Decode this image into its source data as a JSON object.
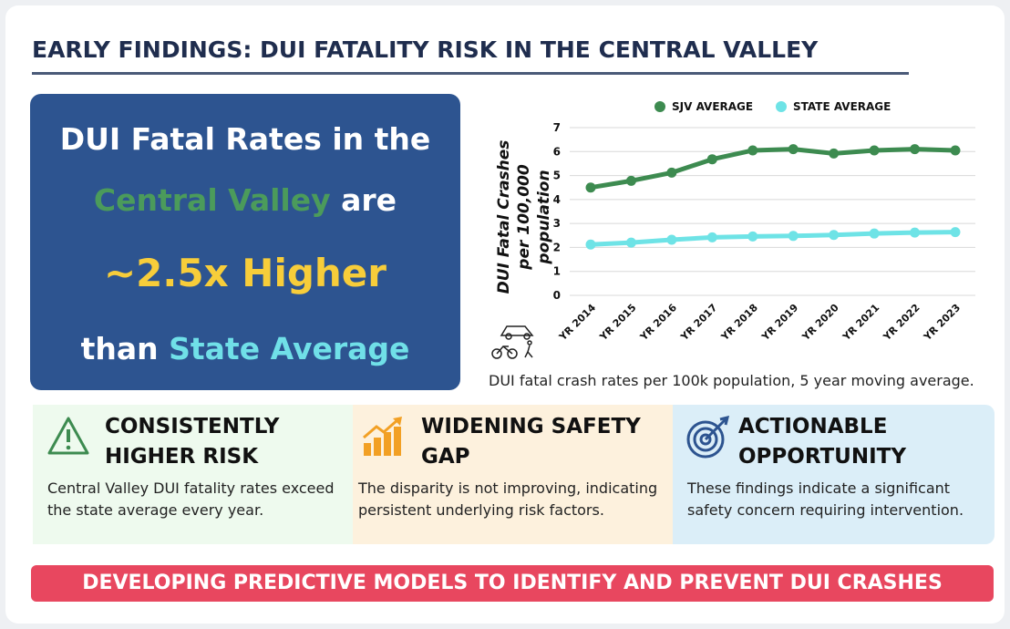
{
  "header": {
    "title": "EARLY FINDINGS: DUI FATALITY RISK IN THE CENTRAL VALLEY"
  },
  "hero": {
    "line1": "DUI Fatal Rates in the",
    "highlight1": "Central Valley",
    "word1": "are",
    "big": "~2.5x Higher",
    "word2": "than",
    "highlight2": "State Average"
  },
  "chart_data": {
    "type": "line",
    "y_label": "DUI Fatal Crashes per 100,000 population",
    "caption": "DUI fatal crash rates per 100k population, 5 year moving average.",
    "categories": [
      "YR 2014",
      "YR 2015",
      "YR 2016",
      "YR 2017",
      "YR 2018",
      "YR 2019",
      "YR 2020",
      "YR 2021",
      "YR 2022",
      "YR 2023"
    ],
    "series": [
      {
        "name": "SJV AVERAGE",
        "color": "#3d8b50",
        "values": [
          4.5,
          4.78,
          5.12,
          5.68,
          6.05,
          6.1,
          5.92,
          6.05,
          6.1,
          6.05
        ]
      },
      {
        "name": "STATE AVERAGE",
        "color": "#6ee3e6",
        "values": [
          2.12,
          2.2,
          2.32,
          2.42,
          2.46,
          2.48,
          2.52,
          2.58,
          2.62,
          2.64
        ]
      }
    ],
    "ylim": [
      0,
      7
    ],
    "yticks": [
      0,
      1,
      2,
      3,
      4,
      5,
      6,
      7
    ],
    "grid": true,
    "legend": "top"
  },
  "cards": [
    {
      "title": "CONSISTENTLY HIGHER RISK",
      "text": "Central Valley DUI fatality rates exceed the state average every year."
    },
    {
      "title": "WIDENING SAFETY GAP",
      "text": "The disparity is not improving, indicating persistent underlying risk factors."
    },
    {
      "title": "ACTIONABLE OPPORTUNITY",
      "text": "These findings indicate a significant safety concern requiring intervention."
    }
  ],
  "footer": {
    "text": "DEVELOPING PREDICTIVE MODELS TO IDENTIFY AND PREVENT DUI CRASHES"
  }
}
